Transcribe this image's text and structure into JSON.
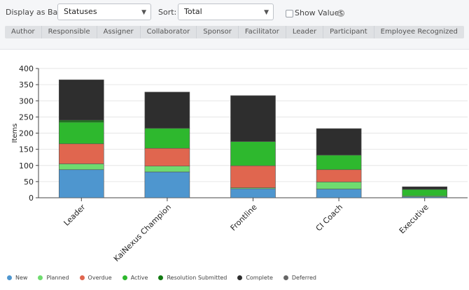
{
  "controls": {
    "display_label": "Display as Bar:",
    "display_value": "Statuses",
    "sort_label": "Sort:",
    "sort_value": "Total",
    "show_values_label": "Show Values",
    "show_values_checked": false
  },
  "tabs": [
    {
      "label": "Author"
    },
    {
      "label": "Responsible"
    },
    {
      "label": "Assigner"
    },
    {
      "label": "Collaborator"
    },
    {
      "label": "Sponsor"
    },
    {
      "label": "Facilitator"
    },
    {
      "label": "Leader"
    },
    {
      "label": "Participant"
    },
    {
      "label": "Employee Recognized"
    }
  ],
  "chart_data": {
    "type": "bar",
    "stacked": true,
    "title": "",
    "xlabel": "",
    "ylabel": "Items",
    "ylim": [
      0,
      400
    ],
    "yticks": [
      0,
      50,
      100,
      150,
      200,
      250,
      300,
      350,
      400
    ],
    "grid": true,
    "legend_position": "bottom",
    "categories": [
      "Leader",
      "KaiNexus Champion",
      "Frontline",
      "CI Coach",
      "Executive"
    ],
    "series": [
      {
        "name": "New",
        "color": "#4e96cf",
        "values": [
          87,
          80,
          28,
          27,
          3
        ]
      },
      {
        "name": "Planned",
        "color": "#6fdc6f",
        "values": [
          18,
          18,
          3,
          22,
          3
        ]
      },
      {
        "name": "Overdue",
        "color": "#e0664f",
        "values": [
          62,
          55,
          68,
          38,
          0
        ]
      },
      {
        "name": "Active",
        "color": "#2eb82e",
        "values": [
          67,
          62,
          75,
          45,
          20
        ]
      },
      {
        "name": "Resolution Submitted",
        "color": "#127a12",
        "values": [
          6,
          0,
          0,
          0,
          0
        ]
      },
      {
        "name": "Complete",
        "color": "#2e2e2e",
        "values": [
          125,
          112,
          142,
          82,
          8
        ]
      },
      {
        "name": "Deferred",
        "color": "#666666",
        "values": [
          0,
          0,
          0,
          0,
          0
        ]
      }
    ]
  }
}
